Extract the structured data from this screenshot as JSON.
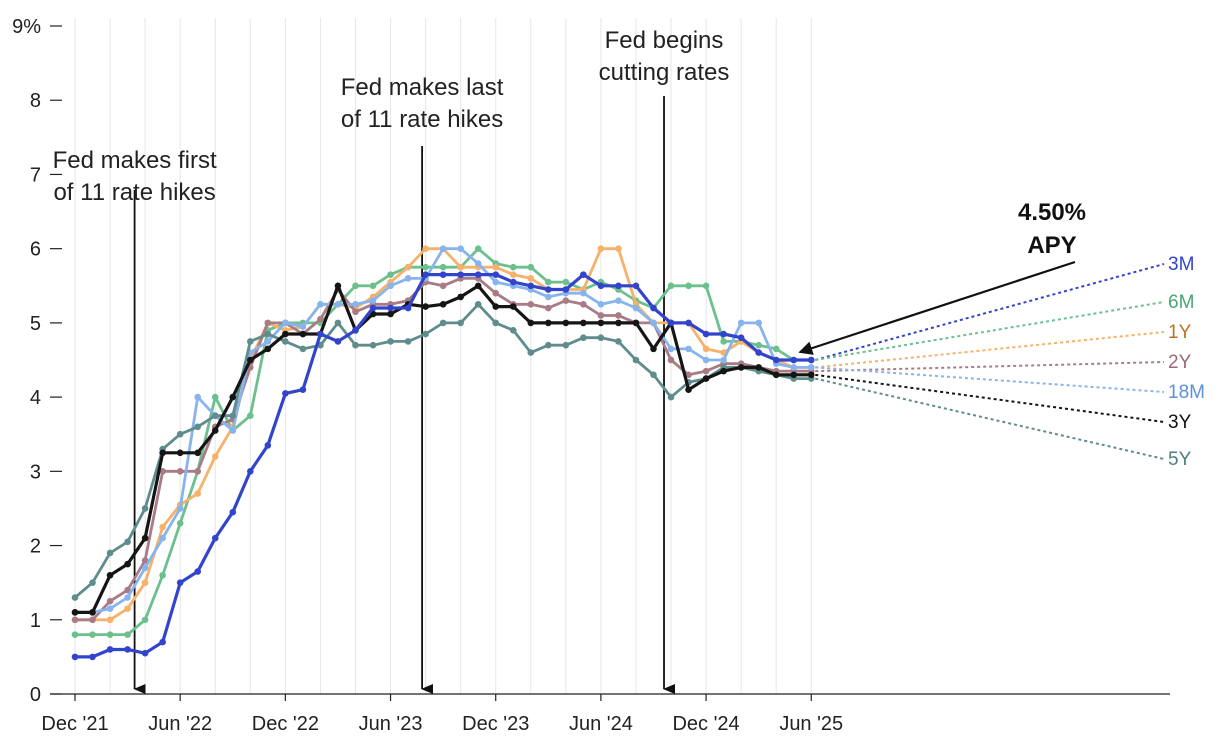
{
  "chart_data": {
    "type": "line",
    "y_axis": {
      "ticks": [
        0,
        1,
        2,
        3,
        4,
        5,
        6,
        7,
        8,
        9
      ],
      "tick_labels": [
        "0",
        "1",
        "2",
        "3",
        "4",
        "5",
        "6",
        "7",
        "8",
        "9%"
      ],
      "ylim": [
        0,
        9
      ]
    },
    "x_axis": {
      "ticks": [
        {
          "x": 0,
          "label": "Dec '21"
        },
        {
          "x": 6,
          "label": "Jun '22"
        },
        {
          "x": 12,
          "label": "Dec '22"
        },
        {
          "x": 18,
          "label": "Jun '23"
        },
        {
          "x": 24,
          "label": "Dec '23"
        },
        {
          "x": 30,
          "label": "Jun '24"
        },
        {
          "x": 36,
          "label": "Dec '24"
        },
        {
          "x": 42,
          "label": "Jun '25"
        }
      ],
      "xlim": [
        0,
        42
      ]
    },
    "grid": "vertical",
    "annotations": [
      {
        "id": "first-hike",
        "lines": [
          "Fed makes first",
          "of 11 rate hikes"
        ],
        "x": 3.4
      },
      {
        "id": "last-hike",
        "lines": [
          "Fed makes last",
          "of 11 rate hikes"
        ],
        "x": 19.8
      },
      {
        "id": "cutting",
        "lines": [
          "Fed begins",
          "cutting rates"
        ],
        "x": 33.6
      }
    ],
    "callout": {
      "lines": [
        "4.50%",
        "APY"
      ],
      "value": 4.5,
      "x": 41.2
    },
    "series": [
      {
        "name": "3M",
        "color": "#3344cc",
        "label_color": "#3344cc",
        "end_value": 4.5,
        "points": [
          [
            0,
            0.5
          ],
          [
            1,
            0.5
          ],
          [
            2,
            0.6
          ],
          [
            3,
            0.6
          ],
          [
            4,
            0.55
          ],
          [
            5,
            0.7
          ],
          [
            6,
            1.5
          ],
          [
            7,
            1.65
          ],
          [
            8,
            2.1
          ],
          [
            9,
            2.45
          ],
          [
            10,
            3.0
          ],
          [
            11,
            3.35
          ],
          [
            12,
            4.05
          ],
          [
            13,
            4.1
          ],
          [
            14,
            4.85
          ],
          [
            15,
            4.75
          ],
          [
            16,
            4.9
          ],
          [
            17,
            5.2
          ],
          [
            18,
            5.2
          ],
          [
            19,
            5.2
          ],
          [
            20,
            5.65
          ],
          [
            21,
            5.65
          ],
          [
            22,
            5.65
          ],
          [
            23,
            5.65
          ],
          [
            24,
            5.65
          ],
          [
            25,
            5.55
          ],
          [
            26,
            5.5
          ],
          [
            27,
            5.45
          ],
          [
            28,
            5.45
          ],
          [
            29,
            5.65
          ],
          [
            30,
            5.5
          ],
          [
            31,
            5.5
          ],
          [
            32,
            5.5
          ],
          [
            33,
            5.2
          ],
          [
            34,
            5.0
          ],
          [
            35,
            5.0
          ],
          [
            36,
            4.85
          ],
          [
            37,
            4.85
          ],
          [
            38,
            4.8
          ],
          [
            39,
            4.6
          ],
          [
            40,
            4.5
          ],
          [
            41,
            4.5
          ],
          [
            42,
            4.5
          ]
        ]
      },
      {
        "name": "6M",
        "color": "#6cc08e",
        "label_color": "#4aa674",
        "end_value": 4.5,
        "points": [
          [
            0,
            0.8
          ],
          [
            1,
            0.8
          ],
          [
            2,
            0.8
          ],
          [
            3,
            0.8
          ],
          [
            4,
            1.0
          ],
          [
            5,
            1.6
          ],
          [
            6,
            2.3
          ],
          [
            7,
            3.0
          ],
          [
            8,
            4.0
          ],
          [
            9,
            3.55
          ],
          [
            10,
            3.75
          ],
          [
            11,
            4.9
          ],
          [
            12,
            5.0
          ],
          [
            13,
            5.0
          ],
          [
            14,
            5.0
          ],
          [
            15,
            5.25
          ],
          [
            16,
            5.5
          ],
          [
            17,
            5.5
          ],
          [
            18,
            5.65
          ],
          [
            19,
            5.75
          ],
          [
            20,
            5.75
          ],
          [
            21,
            5.75
          ],
          [
            22,
            5.75
          ],
          [
            23,
            6.0
          ],
          [
            24,
            5.8
          ],
          [
            25,
            5.75
          ],
          [
            26,
            5.75
          ],
          [
            27,
            5.55
          ],
          [
            28,
            5.55
          ],
          [
            29,
            5.45
          ],
          [
            30,
            5.55
          ],
          [
            31,
            5.45
          ],
          [
            32,
            5.3
          ],
          [
            33,
            5.2
          ],
          [
            34,
            5.5
          ],
          [
            35,
            5.5
          ],
          [
            36,
            5.5
          ],
          [
            37,
            4.75
          ],
          [
            38,
            4.75
          ],
          [
            39,
            4.7
          ],
          [
            40,
            4.65
          ],
          [
            41,
            4.5
          ],
          [
            42,
            4.5
          ]
        ]
      },
      {
        "name": "1Y",
        "color": "#f6b16a",
        "label_color": "#b97620",
        "end_value": 4.4,
        "points": [
          [
            0,
            1.0
          ],
          [
            1,
            1.0
          ],
          [
            2,
            1.0
          ],
          [
            3,
            1.15
          ],
          [
            4,
            1.5
          ],
          [
            5,
            2.25
          ],
          [
            6,
            2.55
          ],
          [
            7,
            2.7
          ],
          [
            8,
            3.2
          ],
          [
            9,
            3.6
          ],
          [
            10,
            4.5
          ],
          [
            11,
            5.0
          ],
          [
            12,
            4.9
          ],
          [
            13,
            4.95
          ],
          [
            14,
            5.25
          ],
          [
            15,
            5.25
          ],
          [
            16,
            5.2
          ],
          [
            17,
            5.35
          ],
          [
            18,
            5.55
          ],
          [
            19,
            5.75
          ],
          [
            20,
            6.0
          ],
          [
            21,
            6.0
          ],
          [
            22,
            5.75
          ],
          [
            23,
            5.75
          ],
          [
            24,
            5.75
          ],
          [
            25,
            5.65
          ],
          [
            26,
            5.6
          ],
          [
            27,
            5.45
          ],
          [
            28,
            5.45
          ],
          [
            29,
            5.45
          ],
          [
            30,
            6.0
          ],
          [
            31,
            6.0
          ],
          [
            32,
            5.25
          ],
          [
            33,
            5.0
          ],
          [
            34,
            5.0
          ],
          [
            35,
            5.0
          ],
          [
            36,
            4.65
          ],
          [
            37,
            4.6
          ],
          [
            38,
            4.75
          ],
          [
            39,
            4.6
          ],
          [
            40,
            4.5
          ],
          [
            41,
            4.4
          ],
          [
            42,
            4.4
          ]
        ]
      },
      {
        "name": "2Y",
        "color": "#a97b84",
        "label_color": "#9a6a74",
        "end_value": 4.35,
        "points": [
          [
            0,
            1.0
          ],
          [
            1,
            1.0
          ],
          [
            2,
            1.25
          ],
          [
            3,
            1.4
          ],
          [
            4,
            1.8
          ],
          [
            5,
            3.0
          ],
          [
            6,
            3.0
          ],
          [
            7,
            3.0
          ],
          [
            8,
            3.6
          ],
          [
            9,
            3.7
          ],
          [
            10,
            4.4
          ],
          [
            11,
            5.0
          ],
          [
            12,
            5.0
          ],
          [
            13,
            4.85
          ],
          [
            14,
            5.05
          ],
          [
            15,
            5.45
          ],
          [
            16,
            5.15
          ],
          [
            17,
            5.25
          ],
          [
            18,
            5.25
          ],
          [
            19,
            5.3
          ],
          [
            20,
            5.55
          ],
          [
            21,
            5.5
          ],
          [
            22,
            5.6
          ],
          [
            23,
            5.6
          ],
          [
            24,
            5.4
          ],
          [
            25,
            5.25
          ],
          [
            26,
            5.25
          ],
          [
            27,
            5.2
          ],
          [
            28,
            5.3
          ],
          [
            29,
            5.25
          ],
          [
            30,
            5.1
          ],
          [
            31,
            5.1
          ],
          [
            32,
            5.0
          ],
          [
            33,
            5.0
          ],
          [
            34,
            4.5
          ],
          [
            35,
            4.3
          ],
          [
            36,
            4.35
          ],
          [
            37,
            4.45
          ],
          [
            38,
            4.45
          ],
          [
            39,
            4.4
          ],
          [
            40,
            4.35
          ],
          [
            41,
            4.35
          ],
          [
            42,
            4.35
          ]
        ]
      },
      {
        "name": "18M",
        "color": "#88b4ee",
        "label_color": "#5d91d8",
        "end_value": 4.4,
        "points": [
          [
            0,
            1.1
          ],
          [
            1,
            1.1
          ],
          [
            2,
            1.15
          ],
          [
            3,
            1.3
          ],
          [
            4,
            1.7
          ],
          [
            5,
            2.1
          ],
          [
            6,
            2.5
          ],
          [
            7,
            4.0
          ],
          [
            8,
            3.75
          ],
          [
            9,
            3.55
          ],
          [
            10,
            4.6
          ],
          [
            11,
            4.75
          ],
          [
            12,
            5.0
          ],
          [
            13,
            4.95
          ],
          [
            14,
            5.25
          ],
          [
            15,
            5.25
          ],
          [
            16,
            5.25
          ],
          [
            17,
            5.3
          ],
          [
            18,
            5.5
          ],
          [
            19,
            5.6
          ],
          [
            20,
            5.6
          ],
          [
            21,
            6.0
          ],
          [
            22,
            6.0
          ],
          [
            23,
            5.8
          ],
          [
            24,
            5.55
          ],
          [
            25,
            5.5
          ],
          [
            26,
            5.45
          ],
          [
            27,
            5.35
          ],
          [
            28,
            5.4
          ],
          [
            29,
            5.4
          ],
          [
            30,
            5.25
          ],
          [
            31,
            5.3
          ],
          [
            32,
            5.2
          ],
          [
            33,
            5.0
          ],
          [
            34,
            4.65
          ],
          [
            35,
            4.65
          ],
          [
            36,
            4.5
          ],
          [
            37,
            4.5
          ],
          [
            38,
            5.0
          ],
          [
            39,
            5.0
          ],
          [
            40,
            4.45
          ],
          [
            41,
            4.4
          ],
          [
            42,
            4.4
          ]
        ]
      },
      {
        "name": "3Y",
        "color": "#151515",
        "label_color": "#111111",
        "end_value": 4.3,
        "points": [
          [
            0,
            1.1
          ],
          [
            1,
            1.1
          ],
          [
            2,
            1.6
          ],
          [
            3,
            1.75
          ],
          [
            4,
            2.1
          ],
          [
            5,
            3.25
          ],
          [
            6,
            3.25
          ],
          [
            7,
            3.25
          ],
          [
            8,
            3.55
          ],
          [
            9,
            4.0
          ],
          [
            10,
            4.5
          ],
          [
            11,
            4.65
          ],
          [
            12,
            4.85
          ],
          [
            13,
            4.85
          ],
          [
            14,
            4.85
          ],
          [
            15,
            5.5
          ],
          [
            16,
            4.9
          ],
          [
            17,
            5.12
          ],
          [
            18,
            5.12
          ],
          [
            19,
            5.25
          ],
          [
            20,
            5.22
          ],
          [
            21,
            5.25
          ],
          [
            22,
            5.35
          ],
          [
            23,
            5.5
          ],
          [
            24,
            5.22
          ],
          [
            25,
            5.22
          ],
          [
            26,
            5.0
          ],
          [
            27,
            5.0
          ],
          [
            28,
            5.0
          ],
          [
            29,
            5.0
          ],
          [
            30,
            5.0
          ],
          [
            31,
            5.0
          ],
          [
            32,
            5.0
          ],
          [
            33,
            4.65
          ],
          [
            34,
            5.0
          ],
          [
            35,
            4.1
          ],
          [
            36,
            4.25
          ],
          [
            37,
            4.35
          ],
          [
            38,
            4.4
          ],
          [
            39,
            4.4
          ],
          [
            40,
            4.3
          ],
          [
            41,
            4.3
          ],
          [
            42,
            4.3
          ]
        ]
      },
      {
        "name": "5Y",
        "color": "#5f8c8c",
        "label_color": "#4d7e80",
        "end_value": 4.25,
        "points": [
          [
            0,
            1.3
          ],
          [
            1,
            1.5
          ],
          [
            2,
            1.9
          ],
          [
            3,
            2.05
          ],
          [
            4,
            2.5
          ],
          [
            5,
            3.3
          ],
          [
            6,
            3.5
          ],
          [
            7,
            3.6
          ],
          [
            8,
            3.75
          ],
          [
            9,
            3.75
          ],
          [
            10,
            4.75
          ],
          [
            11,
            4.85
          ],
          [
            12,
            4.75
          ],
          [
            13,
            4.65
          ],
          [
            14,
            4.7
          ],
          [
            15,
            5.0
          ],
          [
            16,
            4.7
          ],
          [
            17,
            4.7
          ],
          [
            18,
            4.75
          ],
          [
            19,
            4.75
          ],
          [
            20,
            4.85
          ],
          [
            21,
            5.0
          ],
          [
            22,
            5.0
          ],
          [
            23,
            5.25
          ],
          [
            24,
            5.0
          ],
          [
            25,
            4.9
          ],
          [
            26,
            4.6
          ],
          [
            27,
            4.7
          ],
          [
            28,
            4.7
          ],
          [
            29,
            4.8
          ],
          [
            30,
            4.8
          ],
          [
            31,
            4.75
          ],
          [
            32,
            4.5
          ],
          [
            33,
            4.3
          ],
          [
            34,
            4.0
          ],
          [
            35,
            4.2
          ],
          [
            36,
            4.25
          ],
          [
            37,
            4.4
          ],
          [
            38,
            4.4
          ],
          [
            39,
            4.35
          ],
          [
            40,
            4.3
          ],
          [
            41,
            4.25
          ],
          [
            42,
            4.25
          ]
        ]
      }
    ]
  }
}
